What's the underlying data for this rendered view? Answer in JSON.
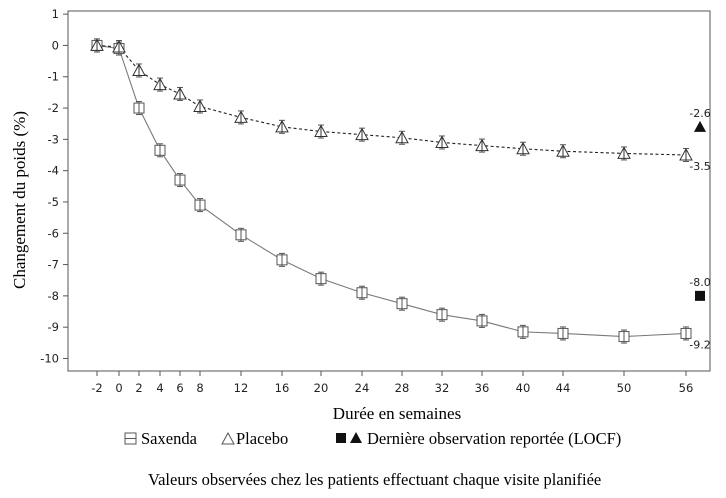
{
  "chart_data": {
    "type": "line",
    "xlabel": "Durée en semaines",
    "ylabel": "Changement du poids (%)",
    "x_ticks": [
      -2,
      0,
      2,
      4,
      6,
      8,
      12,
      16,
      20,
      24,
      28,
      32,
      36,
      40,
      44,
      50,
      56
    ],
    "x_tick_labels": [
      "-2",
      "0",
      "2",
      "4",
      "6",
      "8",
      "12",
      "16",
      "20",
      "24",
      "28",
      "32",
      "36",
      "40",
      "44",
      "50",
      "56"
    ],
    "y_ticks": [
      1,
      0,
      -1,
      -2,
      -3,
      -4,
      -5,
      -6,
      -7,
      -8,
      -9,
      -10
    ],
    "y_tick_labels": [
      "1",
      "0",
      "-1",
      "-2",
      "-3",
      "-4",
      "-5",
      "-6",
      "-7",
      "-8",
      "-9",
      "-10"
    ],
    "ylim": [
      -10.4,
      1.1
    ],
    "grid": false,
    "series": [
      {
        "name": "Saxenda",
        "marker": "square-open",
        "line_style": "solid",
        "color": "#7a7a7a",
        "x": [
          -2,
          0,
          2,
          4,
          6,
          8,
          12,
          16,
          20,
          24,
          28,
          32,
          36,
          40,
          44,
          50,
          56
        ],
        "y": [
          0.0,
          -0.1,
          -2.0,
          -3.35,
          -4.3,
          -5.1,
          -6.05,
          -6.85,
          -7.45,
          -7.9,
          -8.25,
          -8.6,
          -8.8,
          -9.15,
          -9.2,
          -9.3,
          -9.2
        ]
      },
      {
        "name": "Placebo",
        "marker": "triangle-open",
        "line_style": "dashed",
        "color": "#222222",
        "x": [
          -2,
          0,
          2,
          4,
          6,
          8,
          12,
          16,
          20,
          24,
          28,
          32,
          36,
          40,
          44,
          50,
          56
        ],
        "y": [
          0.0,
          -0.05,
          -0.8,
          -1.25,
          -1.55,
          -1.95,
          -2.3,
          -2.6,
          -2.75,
          -2.85,
          -2.95,
          -3.1,
          -3.2,
          -3.3,
          -3.38,
          -3.45,
          -3.5
        ]
      }
    ],
    "locf": [
      {
        "series": "Saxenda",
        "marker": "square-filled",
        "y": -8.0,
        "label": "-8.0"
      },
      {
        "series": "Placebo",
        "marker": "triangle-filled",
        "y": -2.6,
        "label": "-2.6"
      }
    ],
    "end_labels": [
      {
        "series": "Saxenda",
        "y": -9.2,
        "label": "-9.2"
      },
      {
        "series": "Placebo",
        "y": -3.5,
        "label": "-3.5"
      }
    ],
    "legend": {
      "placement": "bottom",
      "saxenda": "Saxenda",
      "placebo": "Placebo",
      "locf": "Dernière observation reportée (LOCF)"
    },
    "note": "Valeurs observées chez les patients effectuant chaque visite planifiée"
  }
}
